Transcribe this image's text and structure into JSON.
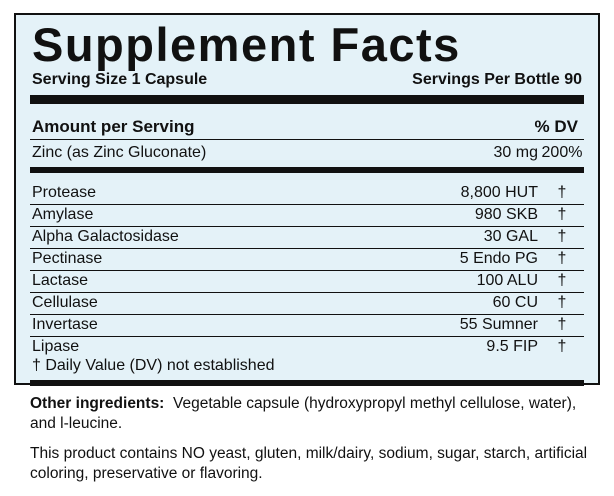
{
  "header": {
    "title": "Supplement Facts",
    "serving_size": "Serving Size 1 Capsule",
    "servings_per": "Servings Per Bottle 90"
  },
  "table": {
    "columns": [
      "Amount per  Serving",
      "% DV"
    ],
    "rows": [
      [
        "Zinc (as Zinc Gluconate)",
        "30  mg",
        "200%"
      ],
      [
        "Protease",
        "8,800 HUT",
        "†"
      ],
      [
        "Amylase",
        "980 SKB",
        "†"
      ],
      [
        "Alpha Galactosidase",
        "30 GAL",
        "†"
      ],
      [
        "Pectinase",
        "5 Endo PG",
        "†"
      ],
      [
        "Lactase",
        "100 ALU",
        "†"
      ],
      [
        "Cellulase",
        "60 CU",
        "†"
      ],
      [
        "Invertase",
        "55 Sumner",
        "†"
      ],
      [
        "Lipase",
        "9.5 FIP",
        "†"
      ]
    ]
  },
  "footnote": "† Daily Value  (DV) not established",
  "other": {
    "label": "Other ingredients:",
    "text": "Vegetable capsule (hydroxypropyl methyl cellulose, water), and l-leucine."
  },
  "note": "This product contains NO yeast, gluten, milk/dairy,  sodium, sugar, starch, artificial coloring,  preservative or flavoring."
}
